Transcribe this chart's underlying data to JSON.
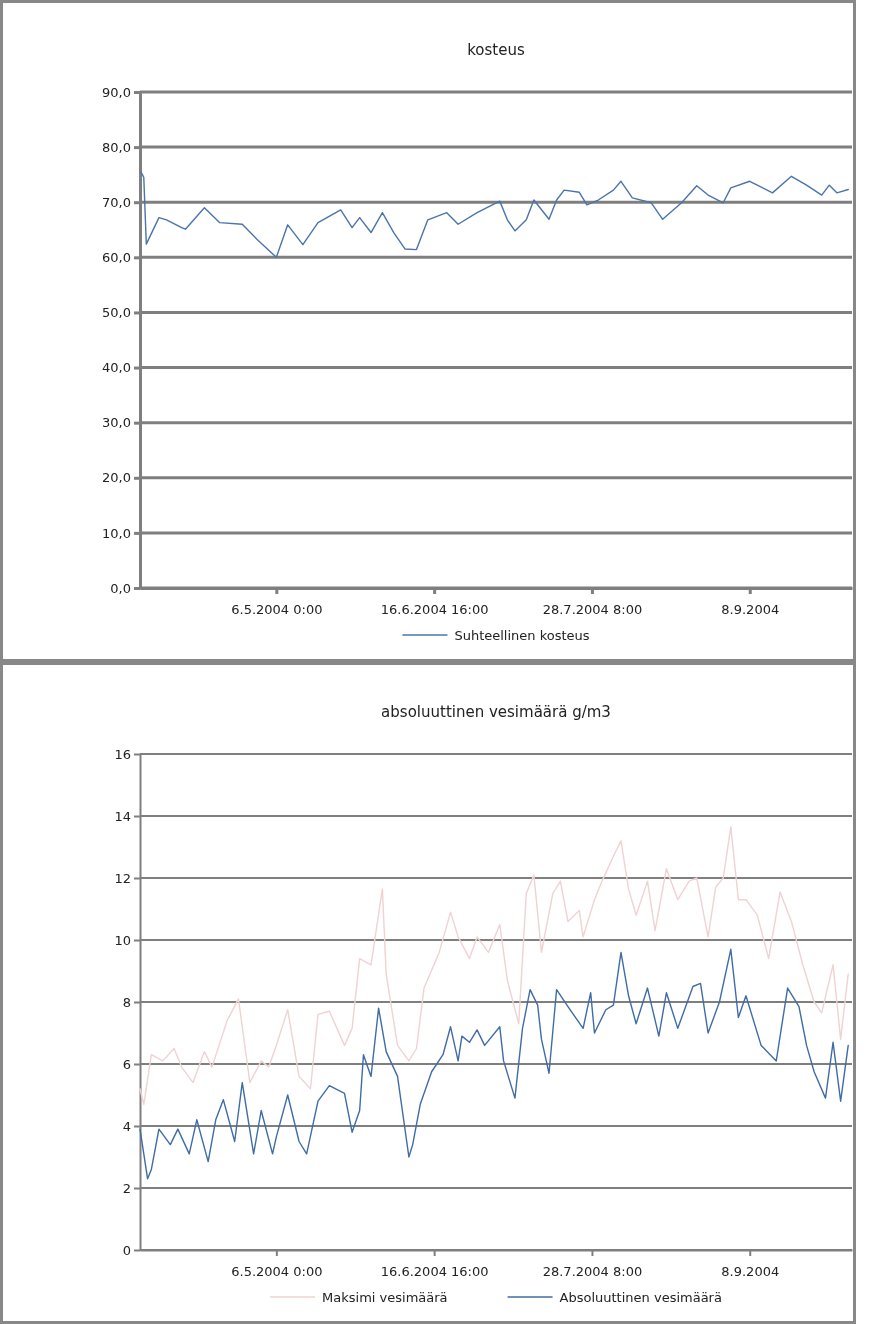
{
  "chart_data": [
    {
      "type": "line",
      "title": "kosteus",
      "xlim": [
        "2004-03-31",
        "2004-10-05"
      ],
      "xticks": [
        {
          "value": "2004-05-06T00:00",
          "label": "6.5.2004 0:00"
        },
        {
          "value": "2004-06-16T16:00",
          "label": "16.6.2004 16:00"
        },
        {
          "value": "2004-07-28T08:00",
          "label": "28.7.2004 8:00"
        },
        {
          "value": "2004-09-08T00:00",
          "label": "8.9.2004"
        }
      ],
      "ylim": [
        0,
        90
      ],
      "yticks": [
        {
          "value": 0,
          "label": "0,0"
        },
        {
          "value": 10,
          "label": "10,0"
        },
        {
          "value": 20,
          "label": "20,0"
        },
        {
          "value": 30,
          "label": "30,0"
        },
        {
          "value": 40,
          "label": "40,0"
        },
        {
          "value": 50,
          "label": "50,0"
        },
        {
          "value": 60,
          "label": "60,0"
        },
        {
          "value": 70,
          "label": "70,0"
        },
        {
          "value": 80,
          "label": "80,0"
        },
        {
          "value": 90,
          "label": "90,0"
        }
      ],
      "grid": "y",
      "legend": "bottom",
      "marker": "none",
      "line_style": "solid",
      "series": [
        {
          "name": "Suhteellinen kosteus",
          "color": "#4a74ac",
          "x": [
            "2004-03-31T06:00",
            "2004-04-01T00:00",
            "2004-04-01T16:00",
            "2004-04-05",
            "2004-04-07",
            "2004-04-11",
            "2004-04-12",
            "2004-04-17",
            "2004-04-21",
            "2004-04-27",
            "2004-05-01",
            "2004-05-06",
            "2004-05-09",
            "2004-05-13",
            "2004-05-17",
            "2004-05-23",
            "2004-05-26",
            "2004-05-28",
            "2004-05-31",
            "2004-06-03",
            "2004-06-06",
            "2004-06-09",
            "2004-06-12",
            "2004-06-15",
            "2004-06-20",
            "2004-06-23",
            "2004-06-28",
            "2004-07-04",
            "2004-07-06",
            "2004-07-08",
            "2004-07-11",
            "2004-07-13",
            "2004-07-17",
            "2004-07-19",
            "2004-07-21",
            "2004-07-25",
            "2004-07-27",
            "2004-07-30",
            "2004-08-03",
            "2004-08-05",
            "2004-08-08",
            "2004-08-13",
            "2004-08-16",
            "2004-08-21",
            "2004-08-25",
            "2004-08-28",
            "2004-09-01",
            "2004-09-03",
            "2004-09-08",
            "2004-09-14",
            "2004-09-19",
            "2004-09-23",
            "2004-09-27",
            "2004-09-29",
            "2004-10-01",
            "2004-10-04"
          ],
          "values": [
            75.5,
            74.5,
            62.4,
            67.2,
            66.8,
            65.4,
            65.1,
            69.0,
            66.3,
            66.0,
            63.2,
            60.0,
            65.9,
            62.3,
            66.3,
            68.6,
            65.4,
            67.2,
            64.5,
            68.1,
            64.5,
            61.5,
            61.4,
            66.8,
            68.1,
            66.0,
            68.1,
            70.2,
            66.8,
            64.8,
            66.8,
            70.4,
            66.9,
            70.4,
            72.2,
            71.8,
            69.5,
            70.4,
            72.2,
            73.8,
            70.8,
            69.9,
            66.9,
            69.9,
            73.0,
            71.3,
            69.9,
            72.6,
            73.8,
            71.7,
            74.7,
            73.1,
            71.3,
            73.1,
            71.7,
            72.3
          ]
        }
      ]
    },
    {
      "type": "line",
      "title": "absoluuttinen vesimäärä g/m3",
      "xlim": [
        "2004-03-31",
        "2004-10-05"
      ],
      "xticks": [
        {
          "value": "2004-05-06T00:00",
          "label": "6.5.2004 0:00"
        },
        {
          "value": "2004-06-16T16:00",
          "label": "16.6.2004 16:00"
        },
        {
          "value": "2004-07-28T08:00",
          "label": "28.7.2004 8:00"
        },
        {
          "value": "2004-09-08T00:00",
          "label": "8.9.2004"
        }
      ],
      "ylim": [
        0,
        16
      ],
      "yticks": [
        0,
        2,
        4,
        6,
        8,
        10,
        12,
        14,
        16
      ],
      "grid": "y",
      "legend": "bottom",
      "marker": "none",
      "line_style": "solid",
      "series": [
        {
          "name": "Maksimi vesimäärä",
          "color": "#f0d2d2",
          "x": [
            "2004-03-31",
            "2004-04-01",
            "2004-04-03",
            "2004-04-06",
            "2004-04-09",
            "2004-04-11",
            "2004-04-14",
            "2004-04-17",
            "2004-04-19",
            "2004-04-23",
            "2004-04-26",
            "2004-04-29",
            "2004-05-02",
            "2004-05-04",
            "2004-05-06",
            "2004-05-09",
            "2004-05-12",
            "2004-05-15",
            "2004-05-17",
            "2004-05-20",
            "2004-05-24",
            "2004-05-26",
            "2004-05-28",
            "2004-05-31",
            "2004-06-03",
            "2004-06-04",
            "2004-06-07",
            "2004-06-10",
            "2004-06-12",
            "2004-06-14",
            "2004-06-18",
            "2004-06-21",
            "2004-06-23",
            "2004-06-26",
            "2004-06-28",
            "2004-07-01",
            "2004-07-04",
            "2004-07-06",
            "2004-07-09",
            "2004-07-11",
            "2004-07-13",
            "2004-07-15",
            "2004-07-18",
            "2004-07-20",
            "2004-07-22",
            "2004-07-25",
            "2004-07-26",
            "2004-07-29",
            "2004-07-31",
            "2004-08-03",
            "2004-08-05",
            "2004-08-07",
            "2004-08-09",
            "2004-08-12",
            "2004-08-14",
            "2004-08-17",
            "2004-08-20",
            "2004-08-23",
            "2004-08-25",
            "2004-08-28",
            "2004-08-30",
            "2004-09-01",
            "2004-09-03",
            "2004-09-05",
            "2004-09-07",
            "2004-09-10",
            "2004-09-13",
            "2004-09-16",
            "2004-09-19",
            "2004-09-22",
            "2004-09-25",
            "2004-09-27",
            "2004-09-30",
            "2004-10-02",
            "2004-10-04"
          ],
          "values": [
            5.2,
            4.7,
            6.3,
            6.1,
            6.5,
            5.9,
            5.4,
            6.4,
            5.9,
            7.4,
            8.1,
            5.4,
            6.1,
            5.9,
            6.6,
            7.75,
            5.6,
            5.2,
            7.6,
            7.7,
            6.6,
            7.15,
            9.4,
            9.2,
            11.65,
            8.9,
            6.6,
            6.1,
            6.5,
            8.45,
            9.6,
            10.9,
            10.1,
            9.4,
            10.1,
            9.6,
            10.5,
            8.7,
            7.3,
            11.5,
            12.1,
            9.6,
            11.5,
            11.9,
            10.6,
            10.95,
            10.1,
            11.3,
            11.9,
            12.7,
            13.2,
            11.65,
            10.8,
            11.9,
            10.3,
            12.3,
            11.3,
            11.9,
            12.0,
            10.1,
            11.7,
            12.0,
            13.65,
            11.3,
            11.3,
            10.8,
            9.4,
            11.55,
            10.6,
            9.2,
            8.0,
            7.65,
            9.2,
            6.8,
            8.9
          ]
        },
        {
          "name": "Absoluuttinen vesimäärä",
          "color": "#3f6ca6",
          "x": [
            "2004-03-31",
            "2004-04-02",
            "2004-04-03",
            "2004-04-05",
            "2004-04-08",
            "2004-04-10",
            "2004-04-13",
            "2004-04-15",
            "2004-04-18",
            "2004-04-20",
            "2004-04-22",
            "2004-04-25",
            "2004-04-27",
            "2004-04-30",
            "2004-05-02",
            "2004-05-05",
            "2004-05-06",
            "2004-05-09",
            "2004-05-12",
            "2004-05-14",
            "2004-05-17",
            "2004-05-20",
            "2004-05-24",
            "2004-05-26",
            "2004-05-28",
            "2004-05-29",
            "2004-05-31",
            "2004-06-02",
            "2004-06-04",
            "2004-06-07",
            "2004-06-10",
            "2004-06-11",
            "2004-06-13",
            "2004-06-16",
            "2004-06-19",
            "2004-06-21",
            "2004-06-23",
            "2004-06-24",
            "2004-06-26",
            "2004-06-28",
            "2004-06-30",
            "2004-07-04",
            "2004-07-05",
            "2004-07-08",
            "2004-07-10",
            "2004-07-12",
            "2004-07-14",
            "2004-07-15",
            "2004-07-17",
            "2004-07-19",
            "2004-07-22",
            "2004-07-26",
            "2004-07-28",
            "2004-07-29",
            "2004-08-01",
            "2004-08-03",
            "2004-08-05",
            "2004-08-07",
            "2004-08-09",
            "2004-08-12",
            "2004-08-15",
            "2004-08-17",
            "2004-08-20",
            "2004-08-24",
            "2004-08-26",
            "2004-08-28",
            "2004-08-31",
            "2004-09-03",
            "2004-09-05",
            "2004-09-07",
            "2004-09-11",
            "2004-09-15",
            "2004-09-18",
            "2004-09-21",
            "2004-09-23",
            "2004-09-25",
            "2004-09-28",
            "2004-09-30",
            "2004-10-02",
            "2004-10-04"
          ],
          "values": [
            3.9,
            2.3,
            2.6,
            3.9,
            3.4,
            3.9,
            3.1,
            4.2,
            2.85,
            4.2,
            4.85,
            3.5,
            5.4,
            3.1,
            4.5,
            3.1,
            3.65,
            5.0,
            3.5,
            3.1,
            4.8,
            5.3,
            5.05,
            3.8,
            4.5,
            6.3,
            5.6,
            7.8,
            6.4,
            5.6,
            3.0,
            3.4,
            4.7,
            5.75,
            6.3,
            7.2,
            6.1,
            6.9,
            6.7,
            7.1,
            6.6,
            7.2,
            6.1,
            4.9,
            7.15,
            8.4,
            7.9,
            6.8,
            5.7,
            8.4,
            7.85,
            7.15,
            8.3,
            7.0,
            7.75,
            7.9,
            9.6,
            8.2,
            7.3,
            8.45,
            6.9,
            8.3,
            7.15,
            8.5,
            8.6,
            7.0,
            8.0,
            9.7,
            7.5,
            8.2,
            6.6,
            6.1,
            8.45,
            7.85,
            6.6,
            5.75,
            4.9,
            6.7,
            4.8,
            6.6
          ]
        }
      ]
    }
  ]
}
